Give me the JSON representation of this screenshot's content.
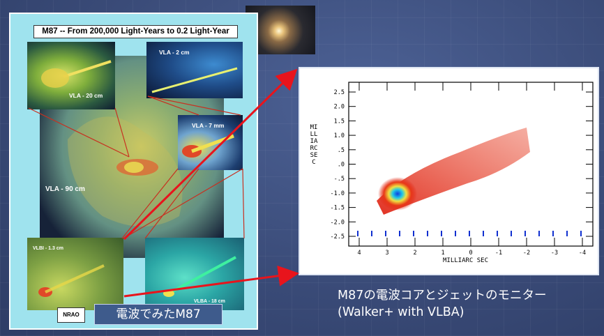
{
  "poster": {
    "title": "M87 -- From 200,000 Light-Years to 0.2 Light-Year",
    "labels": {
      "vla90": "VLA - 90 cm",
      "vla20": "VLA - 20 cm",
      "vla2": "VLA - 2 cm",
      "vla7": "VLA - 7 mm",
      "vlbi": "VLBI - 1.3 cm",
      "vlba": "VLBA - 18 cm"
    },
    "logo_text": "NRAO",
    "caption": "電波でみたM87"
  },
  "chart": {
    "y_label": "MILLIARC SEC",
    "x_label": "MILLIARC SEC",
    "y_ticks": [
      "2.5",
      "2.0",
      "1.5",
      "1.0",
      ".5",
      ".0",
      "-.5",
      "-1.0",
      "-1.5",
      "-2.0",
      "-2.5"
    ],
    "x_ticks": [
      "4",
      "3",
      "2",
      "1",
      "0",
      "-1",
      "-2",
      "-3",
      "-4"
    ]
  },
  "caption": {
    "line1": "M87の電波コアとジェットのモニター",
    "line2": "(Walker+ with VLBA)"
  },
  "colors": {
    "background": "#3c4e7c",
    "arrow": "#e8141c",
    "poster_bg": "#9fe3ee"
  }
}
